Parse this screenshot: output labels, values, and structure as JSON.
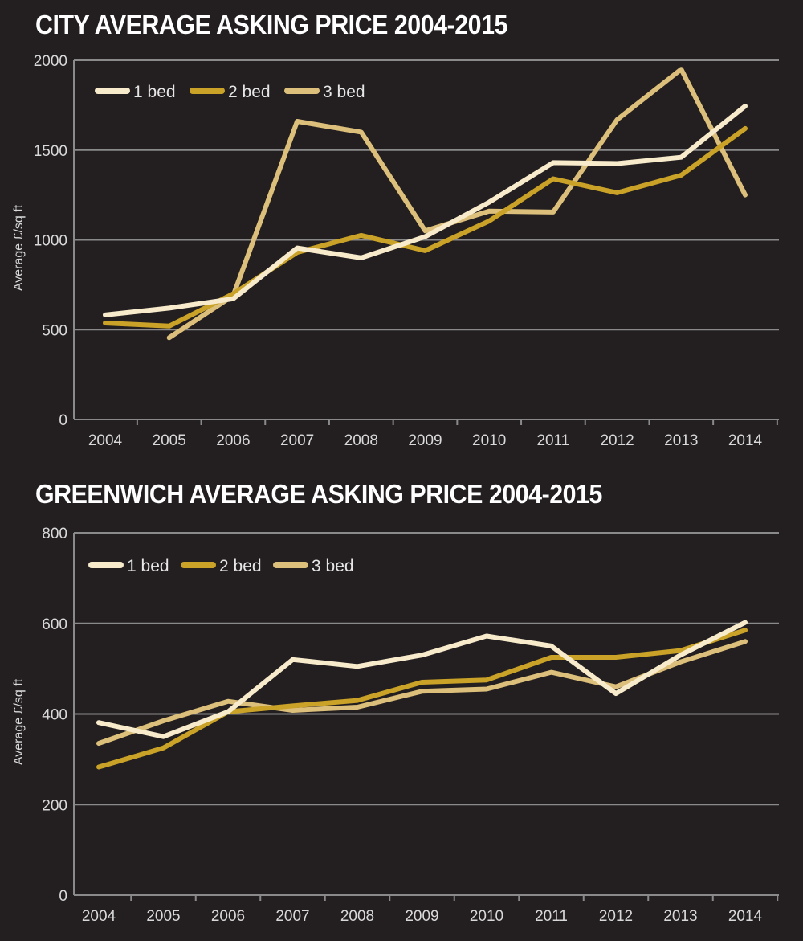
{
  "chart_data": [
    {
      "type": "line",
      "title": "CITY AVERAGE ASKING PRICE 2004-2015",
      "ylabel": "Average £/sq ft",
      "xlabel": "",
      "x": [
        "2004",
        "2005",
        "2006",
        "2007",
        "2008",
        "2009",
        "2010",
        "2011",
        "2012",
        "2013",
        "2014"
      ],
      "ylim": [
        0,
        2000
      ],
      "yticks": [
        0,
        500,
        1000,
        1500,
        2000
      ],
      "grid": true,
      "legend": "top-left",
      "series": [
        {
          "name": "1 bed",
          "color": "#f7ebcc",
          "values": [
            582,
            620,
            672,
            955,
            900,
            1018,
            1210,
            1430,
            1425,
            1460,
            1745
          ]
        },
        {
          "name": "2 bed",
          "color": "#c9a227",
          "values": [
            537,
            520,
            700,
            930,
            1025,
            940,
            1105,
            1340,
            1262,
            1360,
            1620
          ]
        },
        {
          "name": "3 bed",
          "color": "#dcbf7a",
          "values": [
            null,
            455,
            690,
            1660,
            1600,
            1050,
            1160,
            1155,
            1670,
            1950,
            1250
          ]
        }
      ]
    },
    {
      "type": "line",
      "title": "GREENWICH AVERAGE ASKING PRICE 2004-2015",
      "ylabel": "Average £/sq ft",
      "xlabel": "",
      "x": [
        "2004",
        "2005",
        "2006",
        "2007",
        "2008",
        "2009",
        "2010",
        "2011",
        "2012",
        "2013",
        "2014"
      ],
      "ylim": [
        0,
        800
      ],
      "yticks": [
        0,
        200,
        400,
        600,
        800
      ],
      "grid": true,
      "legend": "top-left",
      "series": [
        {
          "name": "1 bed",
          "color": "#f7ebcc",
          "values": [
            381,
            350,
            405,
            520,
            505,
            530,
            572,
            550,
            445,
            530,
            602
          ]
        },
        {
          "name": "2 bed",
          "color": "#c9a227",
          "values": [
            283,
            325,
            405,
            418,
            430,
            470,
            475,
            525,
            525,
            540,
            585
          ]
        },
        {
          "name": "3 bed",
          "color": "#dcbf7a",
          "values": [
            335,
            385,
            428,
            408,
            415,
            450,
            455,
            492,
            460,
            515,
            560
          ]
        }
      ]
    }
  ]
}
